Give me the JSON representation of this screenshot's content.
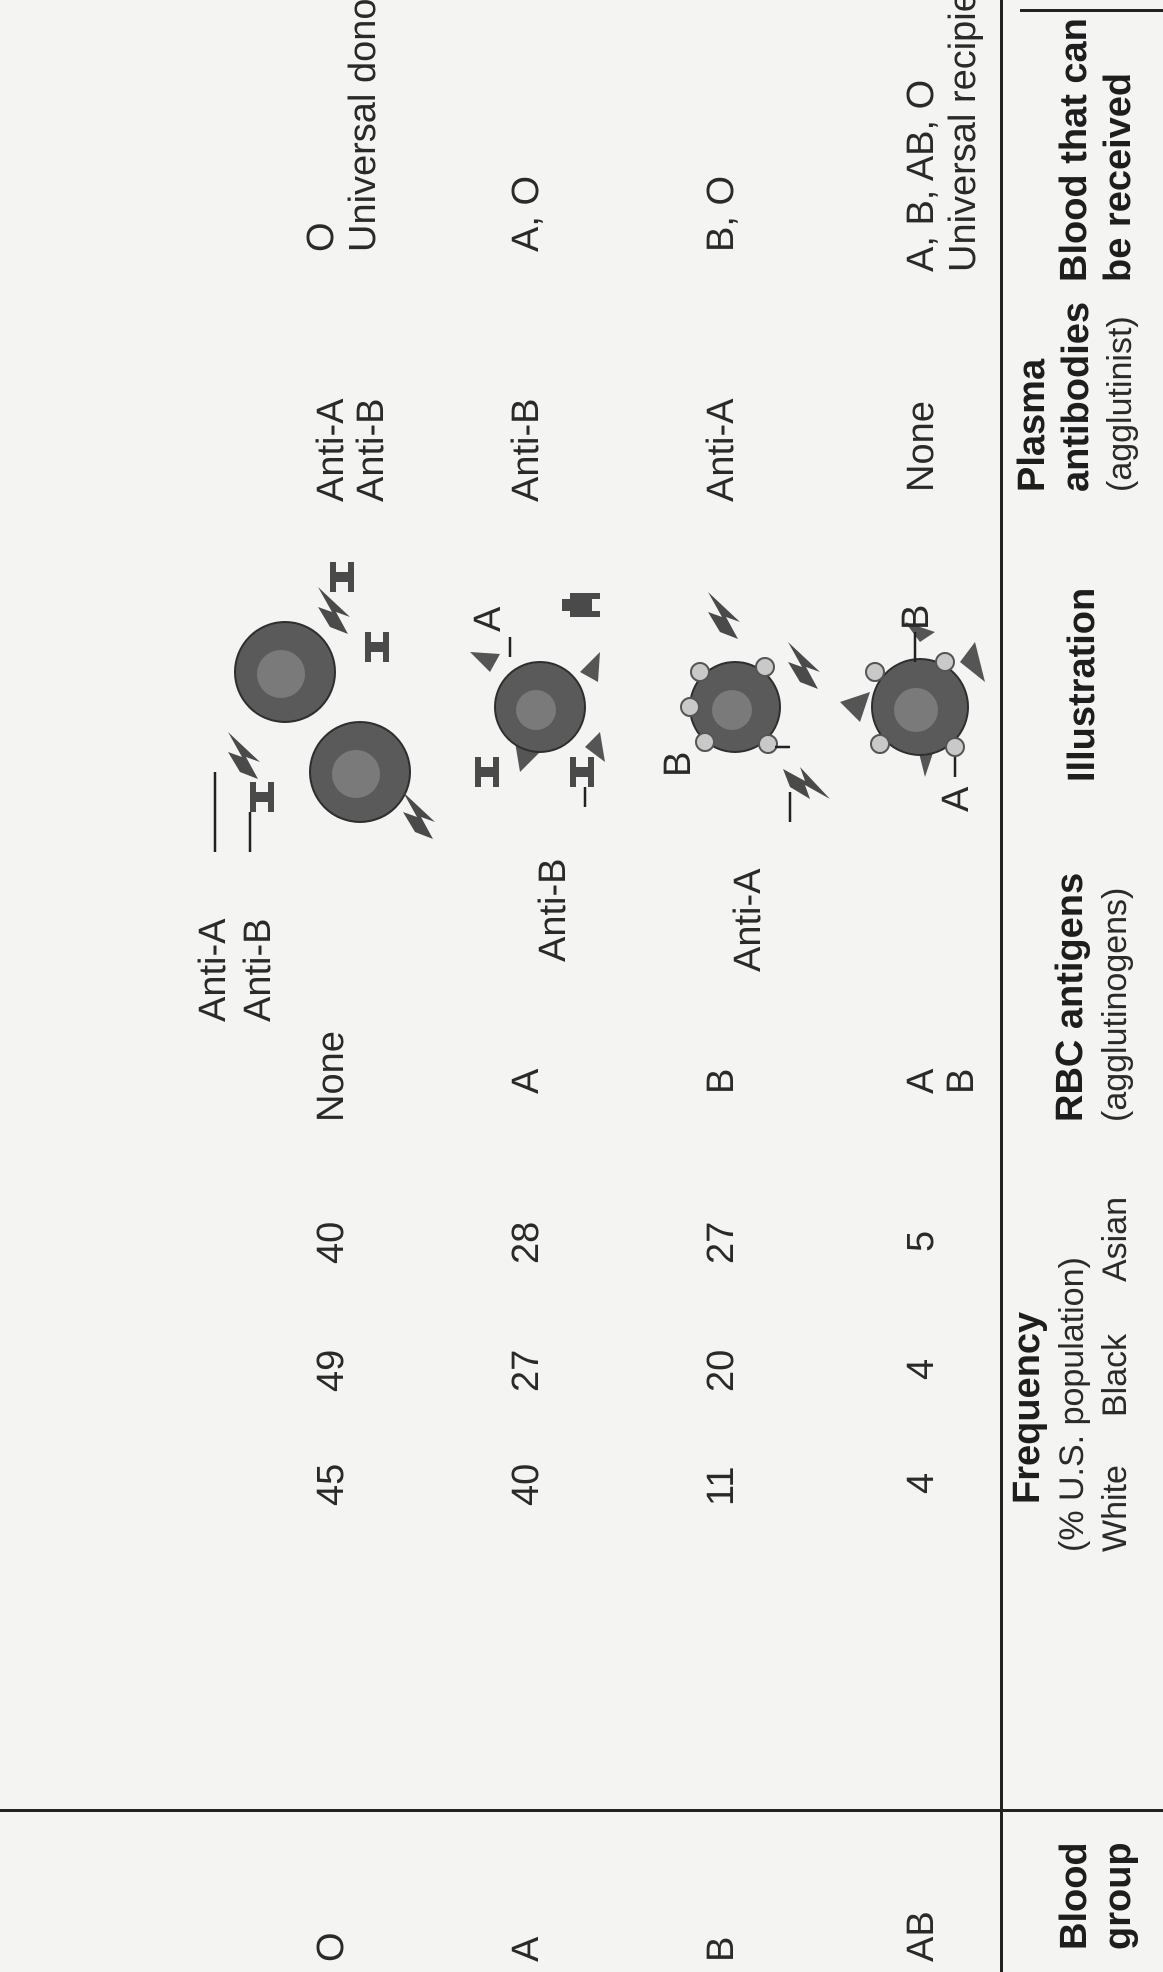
{
  "headers": {
    "blood_group": [
      "Blood",
      "group"
    ],
    "frequency": {
      "title": "Frequency",
      "subtitle": "(% U.S. population)",
      "columns": [
        "White",
        "Black",
        "Asian"
      ]
    },
    "rbc_antigens": {
      "title": "RBC antigens",
      "subtitle": "(agglutinogens)"
    },
    "illustration": "Illustration",
    "plasma_antibodies": {
      "title": [
        "Plasma",
        "antibodies"
      ],
      "subtitle": "(agglutinist)"
    },
    "blood_received": [
      "Blood that can",
      "be received"
    ]
  },
  "rows": [
    {
      "group": "AB",
      "white": "4",
      "black": "4",
      "asian": "5",
      "antigens": [
        "A",
        "B"
      ],
      "illus_labels": [
        "A",
        "B"
      ],
      "antibodies": [
        "None"
      ],
      "received": [
        "A, B, AB, O",
        "Universal recipient"
      ]
    },
    {
      "group": "B",
      "white": "11",
      "black": "20",
      "asian": "27",
      "antigens": [
        "B"
      ],
      "illus_labels": [
        "Anti-A",
        "B"
      ],
      "antibodies": [
        "Anti-A"
      ],
      "received": [
        "B, O"
      ]
    },
    {
      "group": "A",
      "white": "40",
      "black": "27",
      "asian": "28",
      "antigens": [
        "A"
      ],
      "illus_labels": [
        "Anti-B",
        "A"
      ],
      "antibodies": [
        "Anti-B"
      ],
      "received": [
        "A, O"
      ]
    },
    {
      "group": "O",
      "white": "45",
      "black": "49",
      "asian": "40",
      "antigens": [
        "None"
      ],
      "illus_labels": [
        "Anti-B",
        "Anti-A"
      ],
      "antibodies": [
        "Anti-A",
        "Anti-B"
      ],
      "received": [
        "O",
        "Universal donor"
      ]
    }
  ]
}
